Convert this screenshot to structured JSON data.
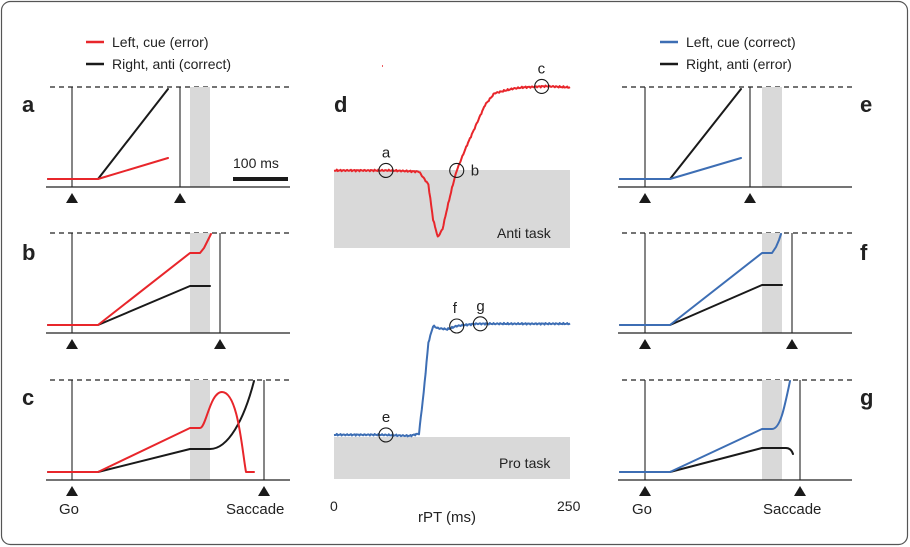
{
  "colors": {
    "red": "#e8262b",
    "blue": "#3d6eb4",
    "black": "#1a1a1a",
    "shade": "#d9d9d9",
    "frame": "#555555"
  },
  "legend_left": {
    "red_label": "Left, cue (error)",
    "black_label": "Right, anti (correct)"
  },
  "legend_right": {
    "blue_label": "Left, cue (correct)",
    "black_label": "Right, anti (error)"
  },
  "panel_labels": {
    "a": "a",
    "b": "b",
    "c": "c",
    "d": "d",
    "e": "e",
    "f": "f",
    "g": "g"
  },
  "scale_bar": "100 ms",
  "left_axis": {
    "go": "Go",
    "saccade": "Saccade"
  },
  "right_axis": {
    "go": "Go",
    "saccade": "Saccade"
  },
  "center": {
    "anti_task": "Anti task",
    "pro_task": "Pro task",
    "xlabel": "rPT (ms)",
    "x_ticks": [
      "0",
      "250"
    ],
    "anti_points": [
      "a",
      "b",
      "c"
    ],
    "pro_points": [
      "e",
      "f",
      "g"
    ]
  },
  "chart_data": [
    {
      "type": "line",
      "panel": "d",
      "title": "Anti task",
      "xlabel": "rPT (ms)",
      "xlim": [
        0,
        250
      ],
      "x": [
        0,
        30,
        60,
        90,
        100,
        105,
        110,
        115,
        120,
        125,
        130,
        140,
        150,
        160,
        170,
        180,
        190,
        200,
        225,
        250
      ],
      "series": [
        {
          "color": "#e8262b",
          "values": [
            0.62,
            0.62,
            0.62,
            0.61,
            0.5,
            0.2,
            0.05,
            0.12,
            0.3,
            0.47,
            0.62,
            0.82,
            1.0,
            1.18,
            1.28,
            1.3,
            1.32,
            1.33,
            1.34,
            1.33
          ]
        }
      ],
      "points": [
        {
          "label": "a",
          "x": 55
        },
        {
          "label": "b",
          "x": 130
        },
        {
          "label": "c",
          "x": 220
        }
      ]
    },
    {
      "type": "line",
      "panel": "pro",
      "title": "Pro task",
      "xlabel": "rPT (ms)",
      "xlim": [
        0,
        250
      ],
      "x": [
        0,
        50,
        80,
        90,
        95,
        100,
        105,
        110,
        120,
        130,
        150,
        200,
        250
      ],
      "series": [
        {
          "color": "#3d6eb4",
          "values": [
            0.02,
            0.02,
            0.01,
            0.03,
            0.4,
            0.85,
            1.0,
            0.98,
            0.97,
            1.0,
            1.02,
            1.02,
            1.02
          ]
        }
      ],
      "points": [
        {
          "label": "e",
          "x": 55
        },
        {
          "label": "f",
          "x": 130
        },
        {
          "label": "g",
          "x": 155
        }
      ]
    }
  ]
}
